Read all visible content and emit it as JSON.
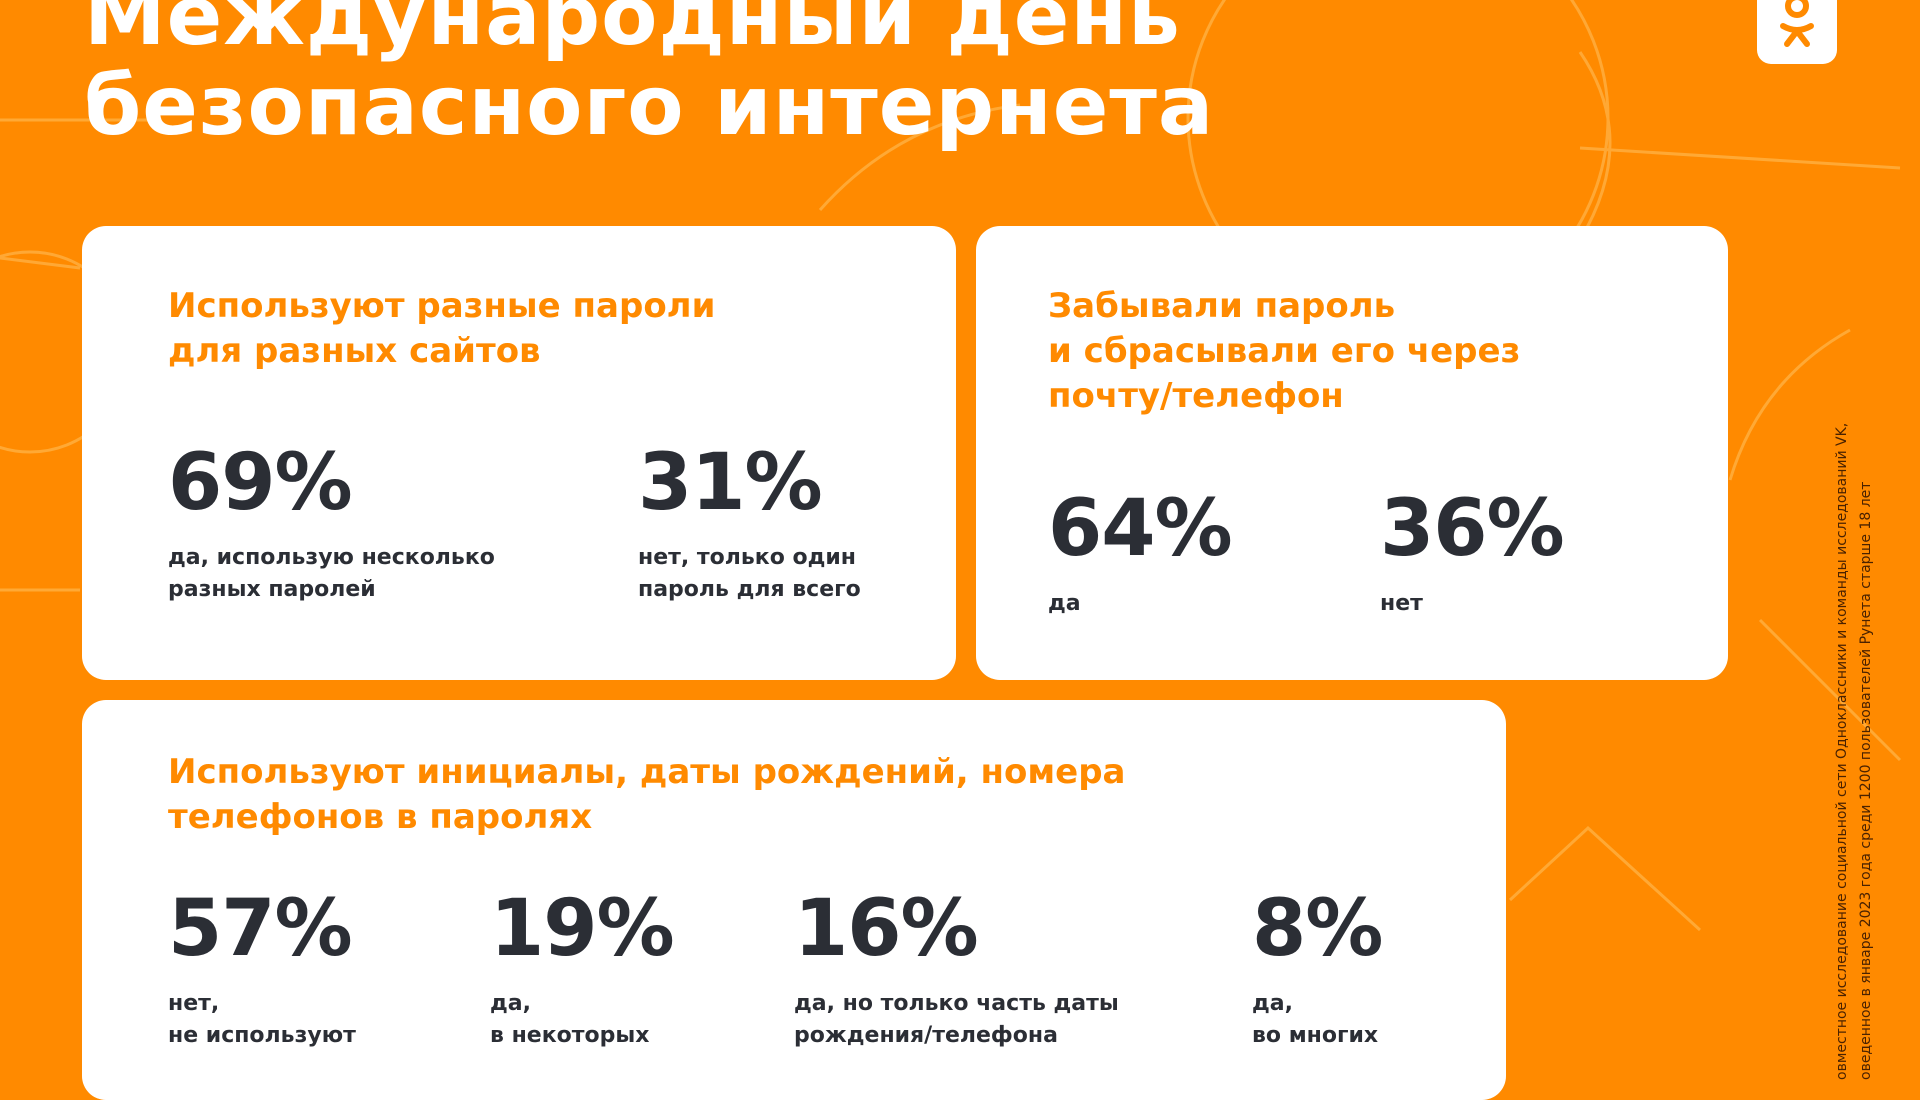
{
  "title": {
    "line1": "Международный день",
    "line2": "безопасного интернета"
  },
  "logo": {
    "icon": "ok-logo-icon"
  },
  "cards": [
    {
      "heading": [
        "Используют разные пароли",
        "для разных сайтов"
      ],
      "stats": [
        {
          "value": "69%",
          "label": [
            "да, использую несколько",
            "разных паролей"
          ]
        },
        {
          "value": "31%",
          "label": [
            "нет, только один",
            "пароль для всего"
          ]
        }
      ]
    },
    {
      "heading": [
        "Забывали пароль",
        "и сбрасывали его через",
        "почту/телефон"
      ],
      "stats": [
        {
          "value": "64%",
          "label": [
            "да"
          ]
        },
        {
          "value": "36%",
          "label": [
            "нет"
          ]
        }
      ]
    },
    {
      "heading": [
        "Используют инициалы, даты рождений, номера",
        "телефонов в паролях"
      ],
      "stats": [
        {
          "value": "57%",
          "label": [
            "нет,",
            "не используют"
          ]
        },
        {
          "value": "19%",
          "label": [
            "да,",
            "в некоторых"
          ]
        },
        {
          "value": "16%",
          "label": [
            "да, но только часть даты",
            "рождения/телефона"
          ]
        },
        {
          "value": "8%",
          "label": [
            "да,",
            "во многих"
          ]
        }
      ]
    }
  ],
  "source": {
    "line1": "овместное исследование социальной сети Одноклассники и команды исследований VK,",
    "line2": "оведенное в январе 2023 года среди 1200 пользователей Рунета старше 18 лет"
  },
  "colors": {
    "accent": "#FF8A00",
    "text": "#2B2E35",
    "card": "#FFFFFF"
  }
}
